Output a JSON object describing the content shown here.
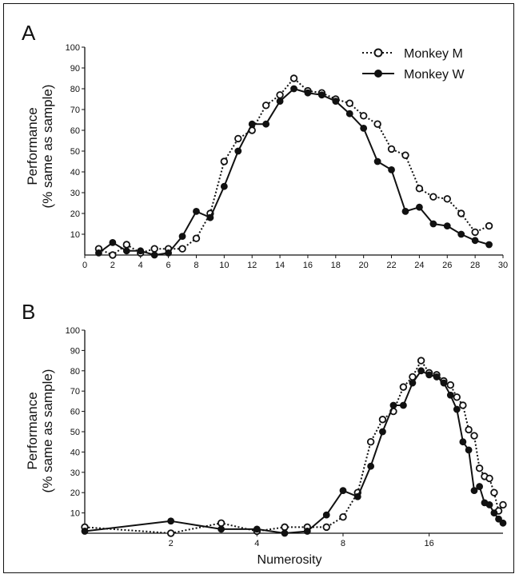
{
  "chart_data": [
    {
      "panel_label": "A",
      "type": "line",
      "xlabel": "",
      "ylabel_line1": "Performance",
      "ylabel_line2": "(% same as sample)",
      "xlim": [
        0,
        30
      ],
      "ylim": [
        0,
        100
      ],
      "x_scale": "linear",
      "x_ticks": [
        0,
        2,
        4,
        6,
        8,
        10,
        12,
        14,
        16,
        18,
        20,
        22,
        24,
        26,
        28,
        30
      ],
      "y_ticks": [
        10,
        20,
        30,
        40,
        50,
        60,
        70,
        80,
        90,
        100
      ],
      "grid": false,
      "legend": "top-right",
      "x": [
        1,
        2,
        3,
        4,
        5,
        6,
        7,
        8,
        9,
        10,
        11,
        12,
        13,
        14,
        15,
        16,
        17,
        18,
        19,
        20,
        21,
        22,
        23,
        24,
        25,
        26,
        27,
        28,
        29
      ],
      "series": [
        {
          "name": "Monkey M",
          "style": "dotted-open-circle",
          "values": [
            3,
            0,
            5,
            1,
            3,
            3,
            3,
            8,
            20,
            45,
            56,
            60,
            72,
            77,
            85,
            79,
            78,
            75,
            73,
            67,
            63,
            51,
            48,
            32,
            28,
            27,
            20,
            11,
            14
          ]
        },
        {
          "name": "Monkey W",
          "style": "solid-filled-circle",
          "values": [
            1,
            6,
            2,
            2,
            0,
            1,
            9,
            21,
            18,
            33,
            50,
            63,
            63,
            74,
            80,
            78,
            77,
            74,
            68,
            61,
            45,
            41,
            21,
            23,
            15,
            14,
            10,
            7,
            5
          ]
        }
      ]
    },
    {
      "panel_label": "B",
      "type": "line",
      "xlabel": "Numerosity",
      "ylabel_line1": "Performance",
      "ylabel_line2": "(% same as sample)",
      "xlim": [
        1,
        29
      ],
      "ylim": [
        0,
        100
      ],
      "x_scale": "log2",
      "x_ticks": [
        2,
        4,
        8,
        16
      ],
      "y_ticks": [
        10,
        20,
        30,
        40,
        50,
        60,
        70,
        80,
        90,
        100
      ],
      "grid": false,
      "x": [
        1,
        2,
        3,
        4,
        5,
        6,
        7,
        8,
        9,
        10,
        11,
        12,
        13,
        14,
        15,
        16,
        17,
        18,
        19,
        20,
        21,
        22,
        23,
        24,
        25,
        26,
        27,
        28,
        29
      ],
      "series": [
        {
          "name": "Monkey M",
          "style": "dotted-open-circle",
          "values": [
            3,
            0,
            5,
            1,
            3,
            3,
            3,
            8,
            20,
            45,
            56,
            60,
            72,
            77,
            85,
            79,
            78,
            75,
            73,
            67,
            63,
            51,
            48,
            32,
            28,
            27,
            20,
            11,
            14
          ]
        },
        {
          "name": "Monkey W",
          "style": "solid-filled-circle",
          "values": [
            1,
            6,
            2,
            2,
            0,
            1,
            9,
            21,
            18,
            33,
            50,
            63,
            63,
            74,
            80,
            78,
            77,
            74,
            68,
            61,
            45,
            41,
            21,
            23,
            15,
            14,
            10,
            7,
            5
          ]
        }
      ]
    }
  ]
}
